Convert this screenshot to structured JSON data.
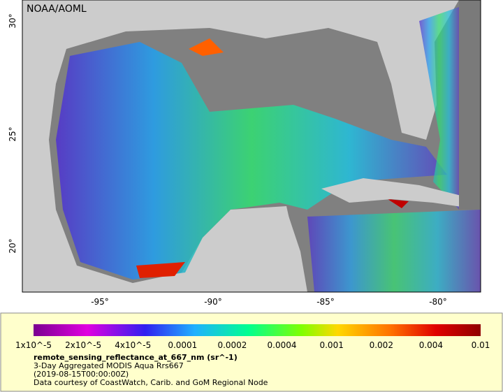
{
  "map": {
    "credit": "NOAA/AOML",
    "x_ticks": [
      "-95°",
      "-90°",
      "-85°",
      "-80°"
    ],
    "y_ticks": [
      "30°",
      "25°",
      "20°"
    ]
  },
  "colorbar": {
    "ticks": [
      "1x10^-5",
      "2x10^-5",
      "4x10^-5",
      "0.0001",
      "0.0002",
      "0.0004",
      "0.001",
      "0.002",
      "0.004",
      "0.01"
    ]
  },
  "caption": {
    "variable": "remote_sensing_reflectance_at_667_nm (sr^-1)",
    "product": "3-Day Aggregated MODIS Aqua Rrs667",
    "date": "(2019-08-15T00:00:00Z)",
    "source": "Data courtesy of CoastWatch, Carib. and GoM Regional Node"
  }
}
